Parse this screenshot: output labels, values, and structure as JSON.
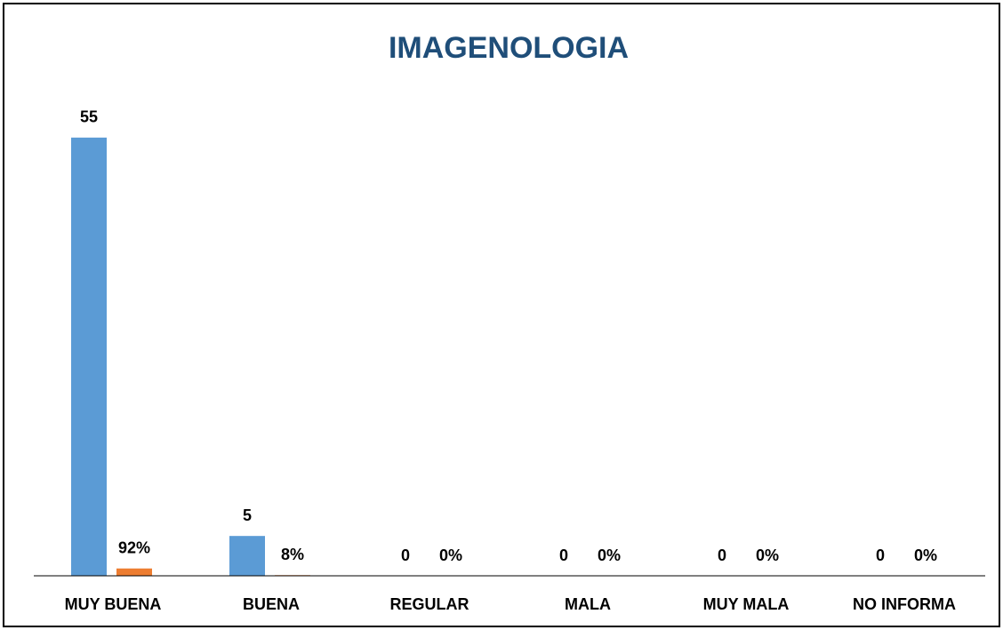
{
  "chart_data": {
    "type": "bar",
    "title": "IMAGENOLOGIA",
    "categories": [
      "MUY BUENA",
      "BUENA",
      "REGULAR",
      "MALA",
      "MUY MALA",
      "NO INFORMA"
    ],
    "series": [
      {
        "color": "#5b9bd5",
        "values": [
          55,
          5,
          0,
          0,
          0,
          0
        ]
      },
      {
        "color": "#ed7d31",
        "values": [
          0.92,
          0.08,
          0,
          0,
          0,
          0
        ],
        "value_labels": [
          "92%",
          "8%",
          "0%",
          "0%",
          "0%",
          "0%"
        ]
      }
    ],
    "ylim": [
      0,
      60
    ]
  }
}
